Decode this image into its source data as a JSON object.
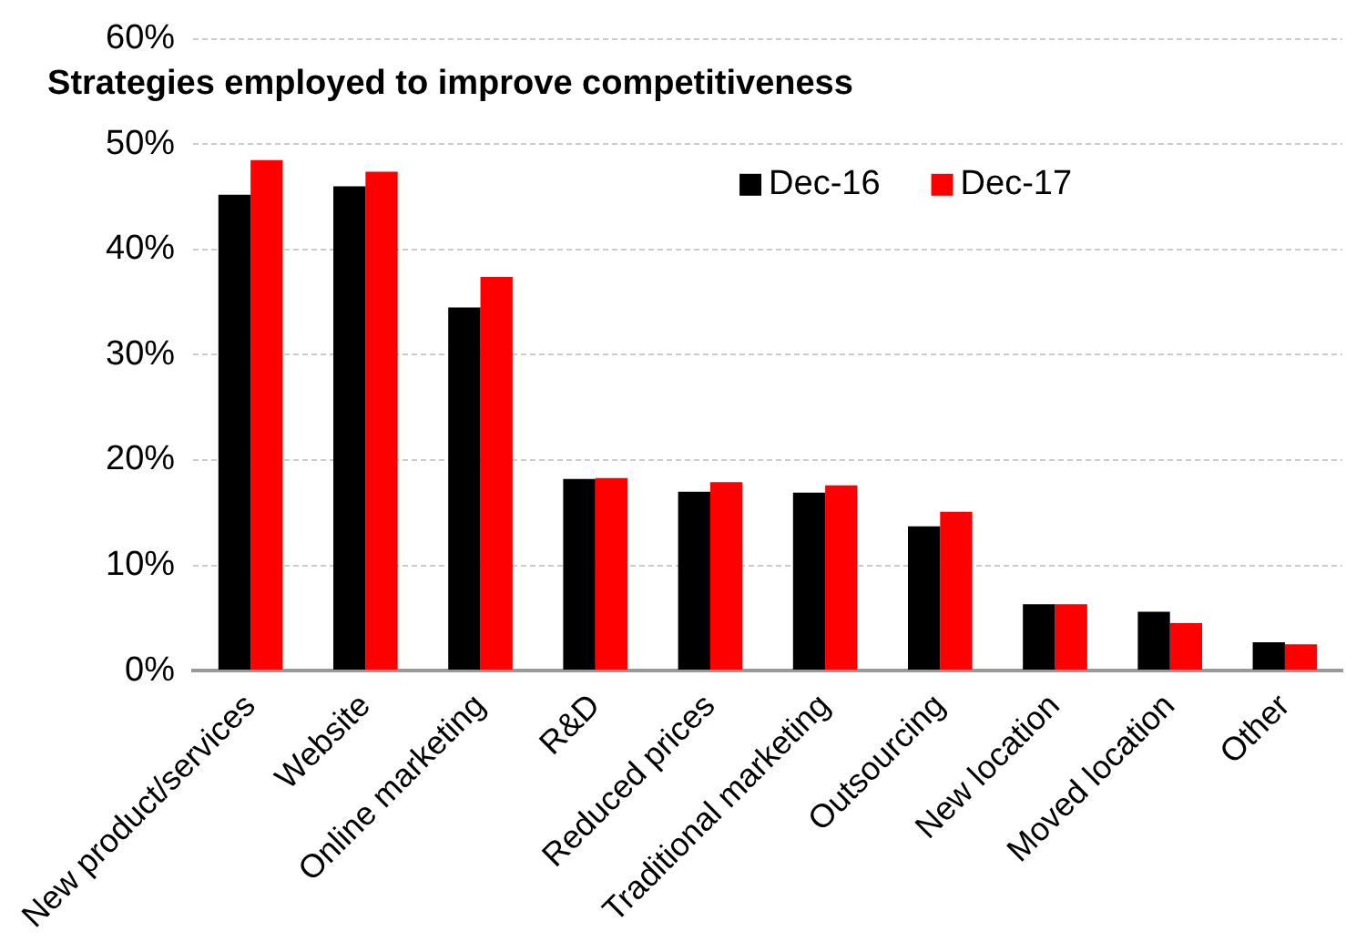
{
  "chart_data": {
    "type": "bar",
    "title": "Strategies employed to improve competitiveness",
    "categories": [
      "New product/services",
      "Website",
      "Online marketing",
      "R&D",
      "Reduced prices",
      "Traditional marketing",
      "Outsourcing",
      "New location",
      "Moved location",
      "Other"
    ],
    "series": [
      {
        "name": "Dec-16",
        "color": "#000000",
        "values": [
          45.2,
          46.0,
          34.5,
          18.2,
          17.0,
          16.9,
          13.7,
          6.3,
          5.6,
          2.7
        ]
      },
      {
        "name": "Dec-17",
        "color": "#ff0000",
        "values": [
          48.5,
          47.4,
          37.4,
          18.3,
          17.9,
          17.6,
          15.1,
          6.3,
          4.5,
          2.5
        ]
      }
    ],
    "ylim": [
      0,
      60
    ],
    "yticks": [
      {
        "value": 0,
        "label": "0%"
      },
      {
        "value": 10,
        "label": "10%"
      },
      {
        "value": 20,
        "label": "20%"
      },
      {
        "value": 30,
        "label": "30%"
      },
      {
        "value": 40,
        "label": "40%"
      },
      {
        "value": 50,
        "label": "50%"
      },
      {
        "value": 60,
        "label": "60%"
      }
    ],
    "grid": "y",
    "legend": "top right"
  }
}
